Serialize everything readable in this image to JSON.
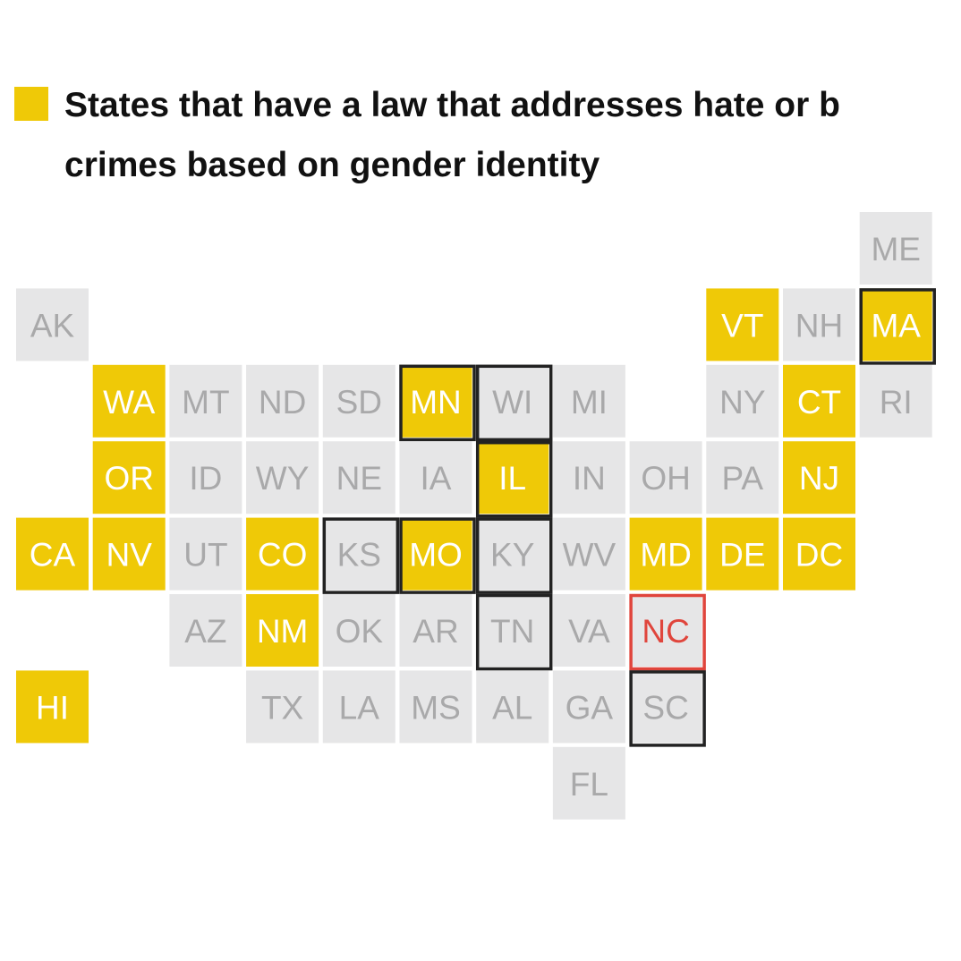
{
  "legend": {
    "color": "#efc907",
    "lines": [
      "States that have a law that addresses hate or b",
      "crimes based on gender identity"
    ]
  },
  "colors": {
    "law": "#efc907",
    "no_law": "#e6e6e7",
    "law_text": "#ffffff",
    "no_law_text": "#a9a9aa"
  },
  "states": [
    {
      "label": "ME",
      "law": false
    },
    {
      "label": "AK",
      "law": false
    },
    {
      "label": "VT",
      "law": true
    },
    {
      "label": "NH",
      "law": false
    },
    {
      "label": "MA",
      "law": true,
      "outline": "#222222"
    },
    {
      "label": "WA",
      "law": true
    },
    {
      "label": "MT",
      "law": false
    },
    {
      "label": "ND",
      "law": false
    },
    {
      "label": "SD",
      "law": false
    },
    {
      "label": "MN",
      "law": true,
      "outline": "#222222"
    },
    {
      "label": "WI",
      "law": false,
      "outline": "#222222"
    },
    {
      "label": "MI",
      "law": false
    },
    {
      "label": "NY",
      "law": false
    },
    {
      "label": "CT",
      "law": true
    },
    {
      "label": "RI",
      "law": false
    },
    {
      "label": "OR",
      "law": true
    },
    {
      "label": "ID",
      "law": false
    },
    {
      "label": "WY",
      "law": false
    },
    {
      "label": "NE",
      "law": false
    },
    {
      "label": "IA",
      "law": false
    },
    {
      "label": "IL",
      "law": true,
      "outline": "#222222"
    },
    {
      "label": "IN",
      "law": false
    },
    {
      "label": "OH",
      "law": false
    },
    {
      "label": "PA",
      "law": false
    },
    {
      "label": "NJ",
      "law": true
    },
    {
      "label": "CA",
      "law": true
    },
    {
      "label": "NV",
      "law": true
    },
    {
      "label": "UT",
      "law": false
    },
    {
      "label": "CO",
      "law": true
    },
    {
      "label": "KS",
      "law": false,
      "outline": "#222222"
    },
    {
      "label": "MO",
      "law": true,
      "outline": "#222222"
    },
    {
      "label": "KY",
      "law": false,
      "outline": "#222222"
    },
    {
      "label": "WV",
      "law": false
    },
    {
      "label": "MD",
      "law": true
    },
    {
      "label": "DE",
      "law": true
    },
    {
      "label": "DC",
      "law": true
    },
    {
      "label": "AZ",
      "law": false
    },
    {
      "label": "NM",
      "law": true
    },
    {
      "label": "OK",
      "law": false
    },
    {
      "label": "AR",
      "law": false
    },
    {
      "label": "TN",
      "law": false,
      "outline": "#222222"
    },
    {
      "label": "VA",
      "law": false
    },
    {
      "label": "NC",
      "law": false,
      "outline": "#e0453c",
      "text_color": "#e0453c"
    },
    {
      "label": "HI",
      "law": true
    },
    {
      "label": "TX",
      "law": false
    },
    {
      "label": "LA",
      "law": false
    },
    {
      "label": "MS",
      "law": false
    },
    {
      "label": "AL",
      "law": false
    },
    {
      "label": "GA",
      "law": false
    },
    {
      "label": "SC",
      "law": false,
      "outline": "#222222"
    },
    {
      "label": "FL",
      "law": false
    }
  ]
}
